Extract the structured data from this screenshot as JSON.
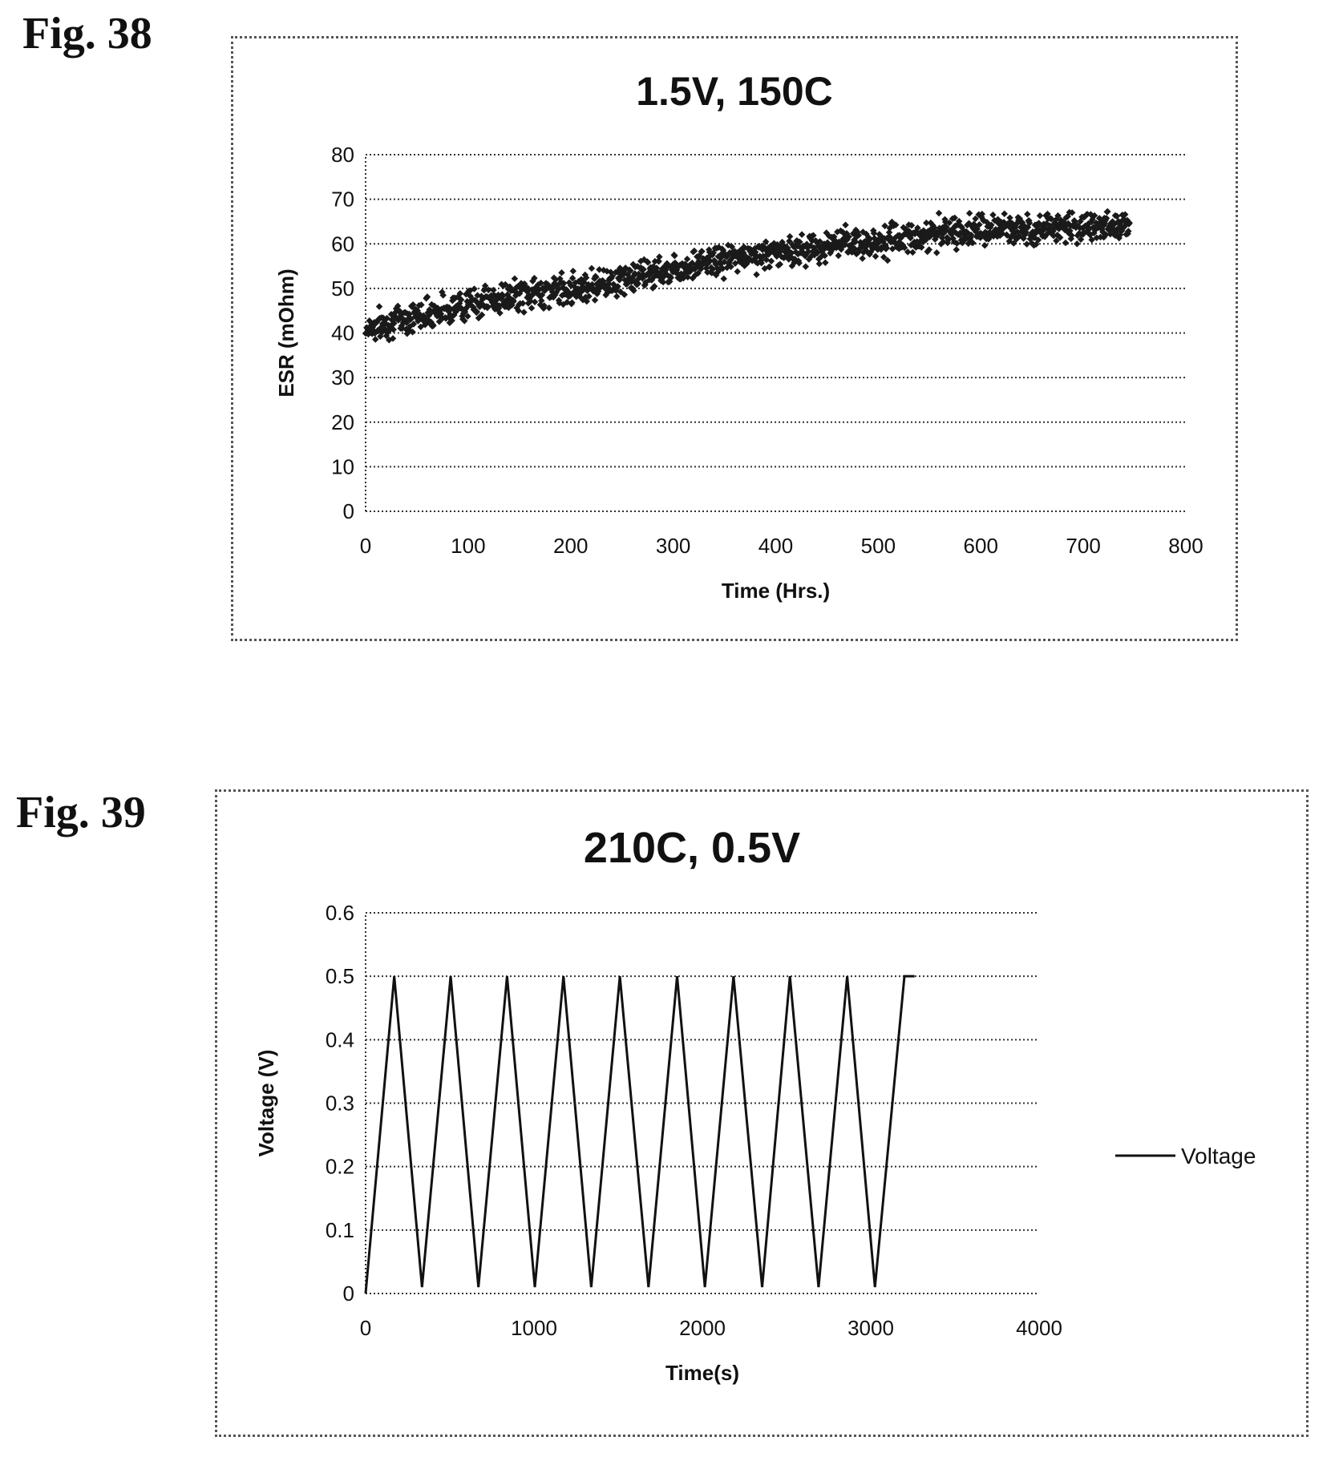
{
  "figures": [
    {
      "label": "Fig. 38"
    },
    {
      "label": "Fig. 39"
    }
  ],
  "chart_data": [
    {
      "type": "scatter",
      "title": "1.5V, 150C",
      "xlabel": "Time (Hrs.)",
      "ylabel": "ESR (mOhm)",
      "xlim": [
        0,
        800
      ],
      "ylim": [
        0,
        80
      ],
      "xticks": [
        0,
        100,
        200,
        300,
        400,
        500,
        600,
        700,
        800
      ],
      "yticks": [
        0,
        10,
        20,
        30,
        40,
        50,
        60,
        70,
        80
      ],
      "grid": true,
      "marker_color": "#1a1a1a",
      "trend": {
        "x": [
          0,
          50,
          100,
          150,
          200,
          250,
          300,
          350,
          400,
          450,
          500,
          550,
          600,
          650,
          700,
          745
        ],
        "y": [
          41,
          44,
          46.5,
          48.5,
          50,
          52,
          54.5,
          56.5,
          58,
          59.5,
          60.5,
          62,
          63,
          63.5,
          64,
          64.5
        ]
      },
      "spread": 3,
      "x_range": [
        0,
        745
      ]
    },
    {
      "type": "line",
      "title": "210C, 0.5V",
      "xlabel": "Time(s)",
      "ylabel": "Voltage (V)",
      "xlim": [
        0,
        4000
      ],
      "ylim": [
        0,
        0.6
      ],
      "xticks": [
        0,
        1000,
        2000,
        3000,
        4000
      ],
      "yticks": [
        0,
        0.1,
        0.2,
        0.3,
        0.4,
        0.5,
        0.6
      ],
      "grid": true,
      "legend_position": "right",
      "series": [
        {
          "name": "Voltage",
          "color": "#111111",
          "x": [
            0,
            170,
            335,
            505,
            670,
            840,
            1005,
            1175,
            1340,
            1510,
            1680,
            1850,
            2015,
            2185,
            2355,
            2520,
            2690,
            2860,
            3025,
            3200,
            3260
          ],
          "y": [
            0,
            0.5,
            0.01,
            0.5,
            0.01,
            0.5,
            0.01,
            0.5,
            0.01,
            0.5,
            0.01,
            0.5,
            0.01,
            0.5,
            0.01,
            0.5,
            0.01,
            0.5,
            0.01,
            0.5,
            0.5
          ]
        }
      ]
    }
  ]
}
